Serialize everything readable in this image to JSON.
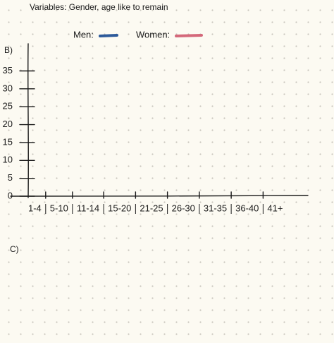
{
  "header": "Variables: Gender, age like to remain",
  "part_b": "B)",
  "part_c": "C)",
  "chart_data": {
    "type": "line",
    "categories": [
      "1-4",
      "5-10",
      "11-14",
      "15-20",
      "21-25",
      "26-30",
      "31-35",
      "36-40",
      "41+"
    ],
    "series": [
      {
        "name": "Men:",
        "color": "#2d5a9a",
        "values": [
          null,
          null,
          null,
          null,
          null,
          null,
          null,
          null,
          null
        ]
      },
      {
        "name": "Women:",
        "color": "#d4687a",
        "values": [
          null,
          null,
          null,
          null,
          null,
          null,
          null,
          null,
          null
        ]
      }
    ],
    "ylim": [
      0,
      42
    ],
    "yticks": [
      0,
      5,
      10,
      15,
      20,
      25,
      30,
      35
    ]
  }
}
